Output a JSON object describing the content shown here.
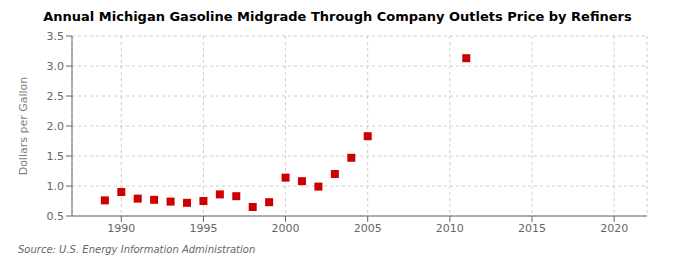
{
  "chart_data": {
    "type": "scatter",
    "title": "Annual Michigan Gasoline Midgrade Through Company Outlets Price by Refiners",
    "y_label": "Dollars per Gallon",
    "annotations": [
      "Source: U.S. Energy Information Administration"
    ],
    "x": [
      1989,
      1990,
      1991,
      1992,
      1993,
      1994,
      1995,
      1996,
      1997,
      1998,
      1999,
      2000,
      2001,
      2002,
      2003,
      2004,
      2005,
      2011
    ],
    "values": [
      0.76,
      0.9,
      0.79,
      0.77,
      0.74,
      0.72,
      0.75,
      0.86,
      0.83,
      0.65,
      0.73,
      1.14,
      1.08,
      0.99,
      1.2,
      1.47,
      1.83,
      3.13
    ],
    "color": "#cc0000",
    "marker": "square",
    "xlim": [
      1987,
      2022
    ],
    "ylim": [
      0.5,
      3.5
    ],
    "xticks": [
      1990,
      1995,
      2000,
      2005,
      2010,
      2015,
      2020
    ],
    "yticks": [
      0.5,
      {
        "value": 1,
        "label": "1.0"
      },
      1.5,
      {
        "value": 2,
        "label": "2.0"
      },
      2.5,
      {
        "value": 3,
        "label": "3.0"
      },
      3.5
    ],
    "grid": true
  }
}
